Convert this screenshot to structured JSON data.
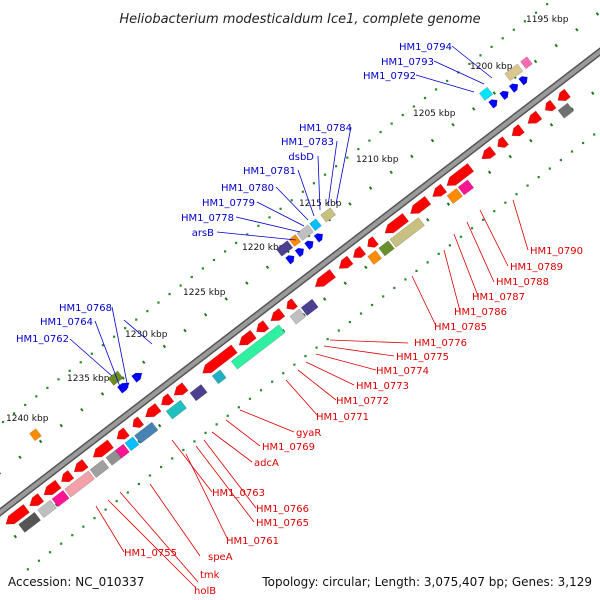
{
  "title": "Heliobacterium modesticaldum Ice1, complete genome",
  "footer": {
    "accession": "Accession: NC_010337",
    "topology": "Topology: circular; Length: 3,075,407 bp; Genes: 3,129"
  },
  "ticks": [
    "1195 kbp",
    "1200 kbp",
    "1205 kbp",
    "1210 kbp",
    "1215 kbp",
    "1220 kbp",
    "1225 kbp",
    "1230 kbp",
    "1235 kbp",
    "1240 kbp"
  ],
  "blue_labels": [
    "HM1_0794",
    "HM1_0793",
    "HM1_0792",
    "HM1_0784",
    "HM1_0783",
    "dsbD",
    "HM1_0781",
    "HM1_0780",
    "HM1_0779",
    "HM1_0778",
    "arsB",
    "HM1_0768",
    "HM1_0764",
    "HM1_0762"
  ],
  "red_labels": [
    "HM1_0790",
    "HM1_0789",
    "HM1_0788",
    "HM1_0787",
    "HM1_0786",
    "HM1_0785",
    "HM1_0776",
    "HM1_0775",
    "HM1_0774",
    "HM1_0773",
    "HM1_0772",
    "HM1_0771",
    "gyaR",
    "HM1_0769",
    "adcA",
    "HM1_0763",
    "HM1_0766",
    "HM1_0765",
    "HM1_0761",
    "HM1_0755",
    "speA",
    "tmk",
    "holB"
  ],
  "colors": {
    "forward": "#0000ff",
    "reverse": "#ff0000",
    "backbone": "#8a8a8a",
    "tick": "#1a7a1a"
  }
}
